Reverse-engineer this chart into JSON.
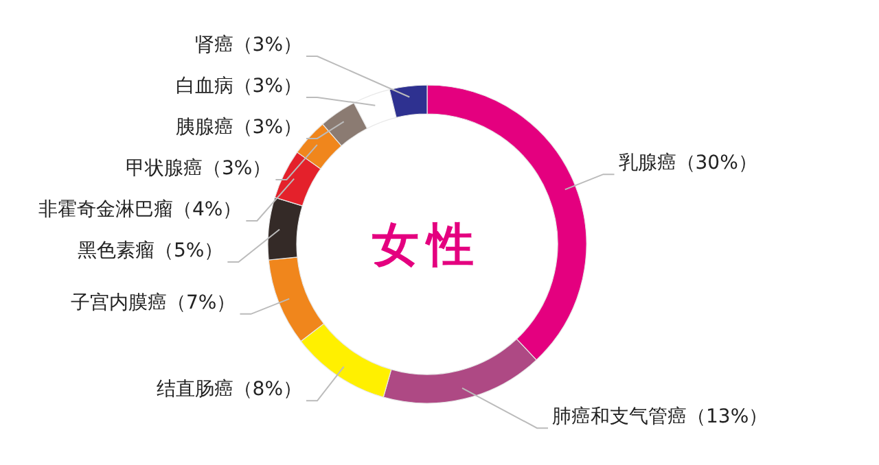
{
  "chart_data": {
    "type": "donut",
    "title": "女性",
    "categories": [
      "乳腺癌（30%）",
      "肺癌和支气管癌（13%）",
      "结直肠癌（8%）",
      "子宫内膜癌（7%）",
      "黑色素瘤（5%）",
      "非霍奇金淋巴瘤（4%）",
      "甲状腺癌（3%）",
      "胰腺癌（3%）",
      "白血病（3%）",
      "肾癌（3%）"
    ],
    "values": [
      30,
      13,
      8,
      7,
      5,
      4,
      3,
      3,
      3,
      3
    ],
    "colors": [
      "#e4007f",
      "#ae4984",
      "#fff000",
      "#f0861c",
      "#342a27",
      "#e4212b",
      "#f0861c",
      "#8b7b72",
      "#ffffff",
      "#2e3190"
    ]
  }
}
